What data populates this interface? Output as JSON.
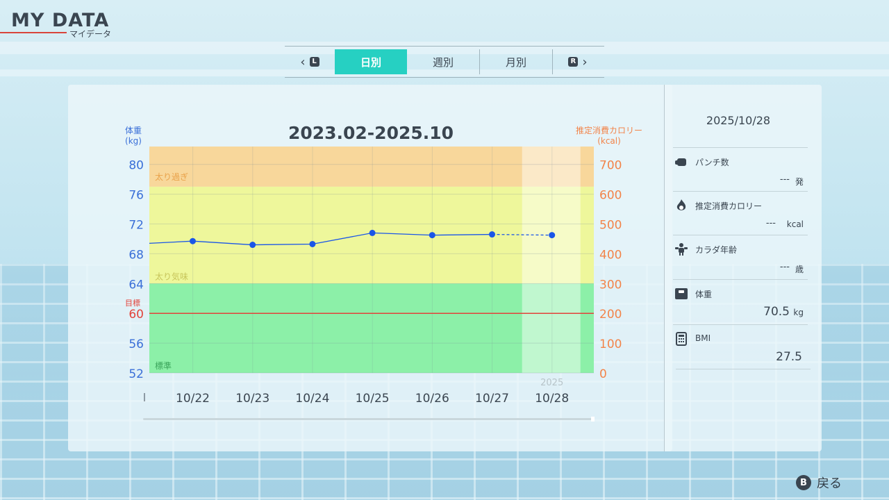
{
  "header": {
    "title": "MY DATA",
    "subtitle": "マイデータ"
  },
  "tabs": {
    "left_button": "L",
    "right_button": "R",
    "items": [
      {
        "label": "日別",
        "active": true
      },
      {
        "label": "週別",
        "active": false
      },
      {
        "label": "月別",
        "active": false
      }
    ]
  },
  "chart_data": {
    "type": "line",
    "title": "2023.02-2025.10",
    "left_axis": {
      "label_line1": "体重",
      "label_line2": "(kg)",
      "ticks": [
        52,
        56,
        60,
        64,
        68,
        72,
        76,
        80
      ],
      "range": [
        52,
        82.4
      ]
    },
    "right_axis": {
      "label_line1": "推定消費カロリー",
      "label_line2": "(kcal)",
      "ticks": [
        0,
        100,
        200,
        300,
        400,
        500,
        600,
        700
      ],
      "range": [
        0,
        760
      ]
    },
    "categories": [
      "10/22",
      "10/23",
      "10/24",
      "10/25",
      "10/26",
      "10/27",
      "10/28"
    ],
    "year_label": "2025",
    "series": [
      {
        "values": [
          69.7,
          69.2,
          69.3,
          70.8,
          70.5,
          70.6,
          70.5
        ],
        "lead_in_value": 69.4,
        "color": "#1a56e8",
        "dashed_last_segment": true
      }
    ],
    "zones": [
      {
        "label": "太り過ぎ",
        "from": 77,
        "to": 82.4,
        "color": "#f8d79b",
        "label_color": "#e9a24a"
      },
      {
        "label": "太り気味",
        "from": 64,
        "to": 77,
        "color": "#eef79b",
        "label_color": "#c7c45a"
      },
      {
        "label": "標準",
        "from": 52,
        "to": 64,
        "color": "#8cf0a8",
        "label_color": "#3aa45a"
      }
    ],
    "target": {
      "label": "目標",
      "value": 60,
      "color": "#e2423a"
    },
    "colors": {
      "left_axis": "#3a6fd8",
      "right_axis": "#f2844a"
    },
    "grid": true
  },
  "side": {
    "date": "2025/10/28",
    "items": [
      {
        "label": "パンチ数",
        "value": "---",
        "unit": "発",
        "icon": "punch-icon"
      },
      {
        "label": "推定消費カロリー",
        "value": "---",
        "unit": "kcal",
        "icon": "flame-icon"
      },
      {
        "label": "カラダ年齢",
        "value": "---",
        "unit": "歳",
        "icon": "body-age-icon"
      },
      {
        "label": "体重",
        "value": "70.5",
        "unit": "kg",
        "icon": "scale-icon"
      },
      {
        "label": "BMI",
        "value": "27.5",
        "unit": "",
        "icon": "calculator-icon"
      }
    ]
  },
  "footer": {
    "back_button": "B",
    "back_label": "戻る"
  }
}
